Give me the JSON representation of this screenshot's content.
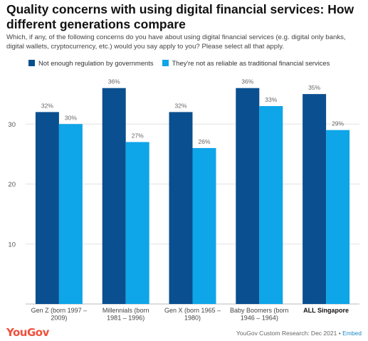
{
  "title": "Quality concerns with using digital financial services: How different generations compare",
  "subtitle": "Which, if any, of the following concerns do you have about using digital financial services (e.g. digital only banks, digital wallets, cryptocurrency, etc.) would you say apply to you? Please select all that apply.",
  "footer": {
    "logo": "YouGov",
    "source": "YouGov Custom Research: Dec 2021",
    "separator": "•",
    "embed": "Embed"
  },
  "chart_data": {
    "type": "bar",
    "categories": [
      [
        "Gen Z (born 1997 –",
        "2009)"
      ],
      [
        "Millennials (born",
        "1981 – 1996)"
      ],
      [
        "Gen X (born 1965 –",
        "1980)"
      ],
      [
        "Baby Boomers (born",
        "1946 – 1964)"
      ],
      [
        "ALL Singapore"
      ]
    ],
    "bold_category_index": 4,
    "series": [
      {
        "name": "Not enough regulation by governments",
        "color": "#0a4f8f",
        "values": [
          32,
          36,
          32,
          36,
          35
        ]
      },
      {
        "name": "They're not as reliable as traditional financial services",
        "color": "#0ea5e9",
        "values": [
          30,
          27,
          26,
          33,
          29
        ]
      }
    ],
    "data_labels": [
      [
        "32%",
        "36%",
        "32%",
        "36%",
        "35%"
      ],
      [
        "30%",
        "27%",
        "26%",
        "33%",
        "29%"
      ]
    ],
    "y_ticks": [
      10,
      20,
      30
    ],
    "ylim": [
      0,
      40
    ],
    "grid": true,
    "legend_position": "top-left"
  }
}
